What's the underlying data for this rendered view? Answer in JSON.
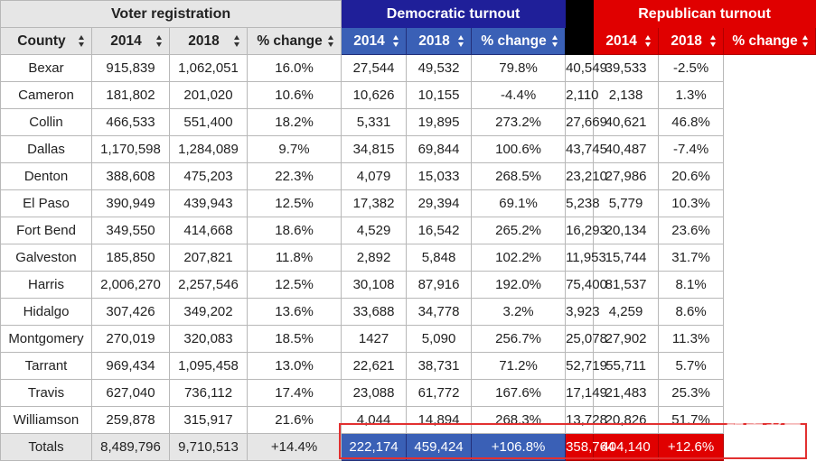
{
  "groups": {
    "voter": "Voter registration",
    "dem": "Democratic turnout",
    "rep": "Republican turnout"
  },
  "headers": [
    "County",
    "2014",
    "2018",
    "% change",
    "2014",
    "2018",
    "% change",
    "2014",
    "2018",
    "% change"
  ],
  "rows": [
    [
      "Bexar",
      "915,839",
      "1,062,051",
      "16.0%",
      "27,544",
      "49,532",
      "79.8%",
      "40,549",
      "39,533",
      "-2.5%"
    ],
    [
      "Cameron",
      "181,802",
      "201,020",
      "10.6%",
      "10,626",
      "10,155",
      "-4.4%",
      "2,110",
      "2,138",
      "1.3%"
    ],
    [
      "Collin",
      "466,533",
      "551,400",
      "18.2%",
      "5,331",
      "19,895",
      "273.2%",
      "27,669",
      "40,621",
      "46.8%"
    ],
    [
      "Dallas",
      "1,170,598",
      "1,284,089",
      "9.7%",
      "34,815",
      "69,844",
      "100.6%",
      "43,745",
      "40,487",
      "-7.4%"
    ],
    [
      "Denton",
      "388,608",
      "475,203",
      "22.3%",
      "4,079",
      "15,033",
      "268.5%",
      "23,210",
      "27,986",
      "20.6%"
    ],
    [
      "El Paso",
      "390,949",
      "439,943",
      "12.5%",
      "17,382",
      "29,394",
      "69.1%",
      "5,238",
      "5,779",
      "10.3%"
    ],
    [
      "Fort Bend",
      "349,550",
      "414,668",
      "18.6%",
      "4,529",
      "16,542",
      "265.2%",
      "16,293",
      "20,134",
      "23.6%"
    ],
    [
      "Galveston",
      "185,850",
      "207,821",
      "11.8%",
      "2,892",
      "5,848",
      "102.2%",
      "11,953",
      "15,744",
      "31.7%"
    ],
    [
      "Harris",
      "2,006,270",
      "2,257,546",
      "12.5%",
      "30,108",
      "87,916",
      "192.0%",
      "75,400",
      "81,537",
      "8.1%"
    ],
    [
      "Hidalgo",
      "307,426",
      "349,202",
      "13.6%",
      "33,688",
      "34,778",
      "3.2%",
      "3,923",
      "4,259",
      "8.6%"
    ],
    [
      "Montgomery",
      "270,019",
      "320,083",
      "18.5%",
      "1427",
      "5,090",
      "256.7%",
      "25,078",
      "27,902",
      "11.3%"
    ],
    [
      "Tarrant",
      "969,434",
      "1,095,458",
      "13.0%",
      "22,621",
      "38,731",
      "71.2%",
      "52,719",
      "55,711",
      "5.7%"
    ],
    [
      "Travis",
      "627,040",
      "736,112",
      "17.4%",
      "23,088",
      "61,772",
      "167.6%",
      "17,149",
      "21,483",
      "25.3%"
    ],
    [
      "Williamson",
      "259,878",
      "315,917",
      "21.6%",
      "4,044",
      "14,894",
      "268.3%",
      "13,728",
      "20,826",
      "51.7%"
    ]
  ],
  "totals": [
    "Totals",
    "8,489,796",
    "9,710,513",
    "+14.4%",
    "222,174",
    "459,424",
    "+106.8%",
    "358,764",
    "404,140",
    "+12.6%"
  ],
  "watermark": {
    "big": "观察者网",
    "small": "www.guancha.cn"
  }
}
